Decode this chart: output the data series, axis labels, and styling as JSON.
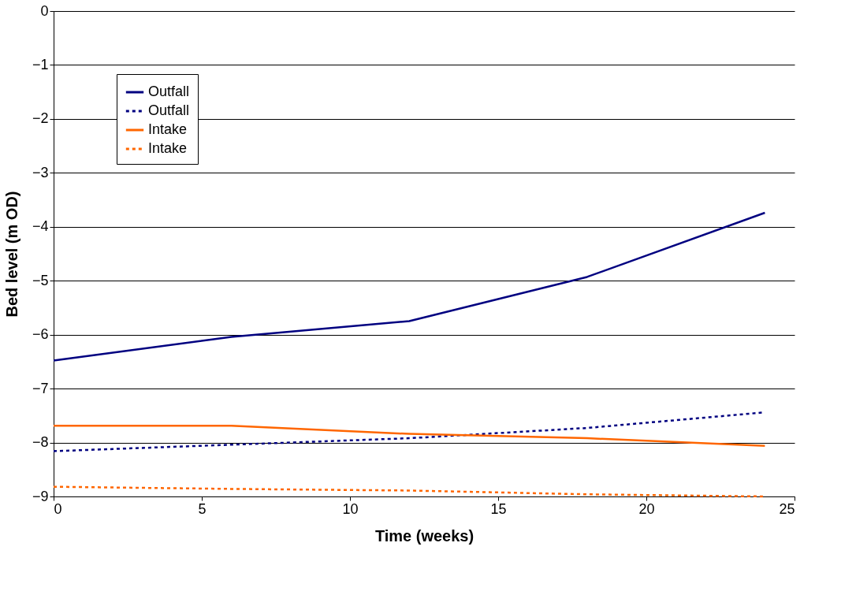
{
  "chart_data": {
    "type": "line",
    "xlabel": "Time (weeks)",
    "ylabel": "Bed level (m OD)",
    "x": [
      0,
      6,
      12,
      18,
      24
    ],
    "series": [
      {
        "name": "Outfall",
        "color": "#000080",
        "line_style": "solid",
        "values": [
          -6.48,
          -6.04,
          -5.75,
          -4.93,
          -3.74
        ]
      },
      {
        "name": "Outfall",
        "color": "#000080",
        "line_style": "dotted",
        "values": [
          -8.16,
          -8.04,
          -7.92,
          -7.73,
          -7.44
        ]
      },
      {
        "name": "Intake",
        "color": "#ff6600",
        "line_style": "solid",
        "values": [
          -7.69,
          -7.69,
          -7.84,
          -7.92,
          -8.06
        ]
      },
      {
        "name": "Intake",
        "color": "#ff6600",
        "line_style": "dotted",
        "values": [
          -8.82,
          -8.86,
          -8.89,
          -8.96,
          -9.0
        ]
      }
    ],
    "xlim": [
      0,
      25
    ],
    "xticks": [
      0,
      5,
      10,
      15,
      20,
      25
    ],
    "ylim": [
      -9,
      0
    ],
    "yticks": [
      -9,
      -8,
      -7,
      -6,
      -5,
      -4,
      -3,
      -2,
      -1,
      0
    ],
    "grid": "y",
    "legend": "top left",
    "marker": "none"
  }
}
